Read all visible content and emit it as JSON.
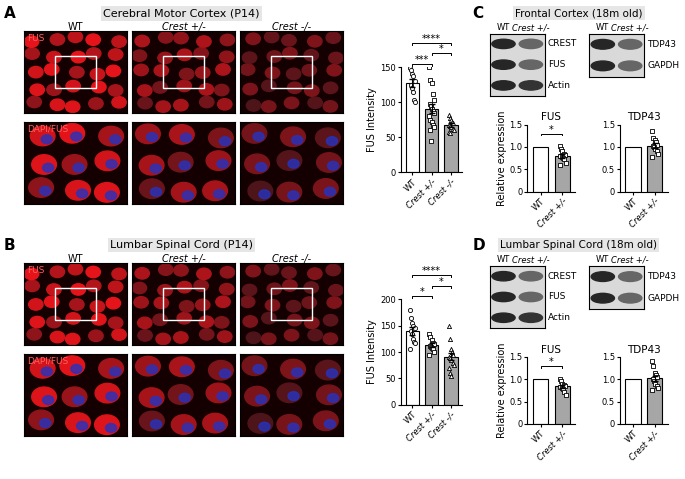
{
  "panels": [
    {
      "label": "A",
      "title": "Cerebral Motor Cortex (P14)",
      "image_columns": [
        "WT",
        "Crest +/-",
        "Crest -/-"
      ],
      "image_rows": [
        "FUS",
        "DAPI/FUS"
      ]
    },
    {
      "label": "B",
      "title": "Lumbar Spinal Cord (P14)",
      "image_columns": [
        "WT",
        "Crest +/-",
        "Crest -/-"
      ],
      "image_rows": [
        "FUS",
        "DAPI/FUS"
      ]
    },
    {
      "label": "C",
      "title": "Frontal Cortex (18m old)",
      "blot_columns": [
        "WT",
        "Crest +/-"
      ],
      "blot_left_rows": [
        "CREST",
        "FUS",
        "Actin"
      ],
      "blot_right_rows": [
        "TDP43",
        "GAPDH"
      ]
    },
    {
      "label": "D",
      "title": "Lumbar Spinal Cord (18m old)",
      "blot_columns": [
        "WT",
        "Crest +/-"
      ],
      "blot_left_rows": [
        "CREST",
        "FUS",
        "Actin"
      ],
      "blot_right_rows": [
        "TDP43",
        "GAPDH"
      ]
    }
  ],
  "chart_data": [
    {
      "type": "bar",
      "ylabel": "FUS Intensity",
      "categories": [
        "WT",
        "Crest +/-",
        "Crest -/-"
      ],
      "values": [
        127,
        91,
        68
      ],
      "errors": [
        6,
        6,
        3
      ],
      "colors": [
        "#ffffff",
        "#a6a6a6",
        "#a6a6a6"
      ],
      "points": [
        [
          148,
          146,
          140,
          137,
          130,
          125,
          120,
          115,
          103,
          100
        ],
        [
          150,
          132,
          128,
          112,
          103,
          98,
          95,
          90,
          88,
          85,
          80,
          75,
          72,
          68,
          65,
          60,
          45
        ],
        [
          82,
          78,
          75,
          72,
          70,
          68,
          66,
          64,
          62,
          60,
          58,
          56
        ]
      ],
      "ylim": [
        0,
        150
      ],
      "yticks": [
        0,
        50,
        100,
        150
      ],
      "significance": [
        {
          "pair": [
            0,
            1
          ],
          "label": "***"
        },
        {
          "pair": [
            1,
            2
          ],
          "label": "*"
        },
        {
          "pair": [
            0,
            2
          ],
          "label": "****"
        }
      ]
    },
    {
      "type": "bar",
      "ylabel": "FUS Intensity",
      "categories": [
        "WT",
        "Crest +/-",
        "Crest -/-"
      ],
      "values": [
        140,
        113,
        91
      ],
      "errors": [
        8,
        4,
        7
      ],
      "colors": [
        "#ffffff",
        "#a6a6a6",
        "#a6a6a6"
      ],
      "points": [
        [
          180,
          165,
          155,
          150,
          145,
          140,
          135,
          125,
          120,
          117,
          105
        ],
        [
          135,
          128,
          122,
          118,
          115,
          112,
          110,
          108,
          105,
          100,
          95
        ],
        [
          150,
          125,
          105,
          100,
          95,
          90,
          88,
          85,
          80,
          75,
          70,
          60,
          55
        ]
      ],
      "ylim": [
        0,
        200
      ],
      "yticks": [
        0,
        50,
        100,
        150,
        200
      ],
      "significance": [
        {
          "pair": [
            0,
            1
          ],
          "label": "*"
        },
        {
          "pair": [
            1,
            2
          ],
          "label": "*"
        },
        {
          "pair": [
            0,
            2
          ],
          "label": "****"
        }
      ]
    },
    {
      "type": "bar",
      "title": "FUS",
      "ylabel": "Relative expression",
      "categories": [
        "WT",
        "Crest +/-"
      ],
      "values": [
        1,
        0.8
      ],
      "errors": [
        null,
        0.04
      ],
      "colors": [
        "#ffffff",
        "#a6a6a6"
      ],
      "points": [
        [],
        [
          1.02,
          0.95,
          0.9,
          0.85,
          0.82,
          0.8,
          0.78,
          0.75,
          0.72,
          0.65,
          0.6
        ]
      ],
      "ylim": [
        0,
        1.5
      ],
      "yticks": [
        0,
        0.5,
        {
          "value": 1,
          "label": "1.0"
        },
        1.5
      ],
      "significance": [
        {
          "pair": [
            0,
            1
          ],
          "label": "*"
        }
      ]
    },
    {
      "type": "bar",
      "title": "TDP43",
      "categories": [
        "WT",
        "Crest +/-"
      ],
      "values": [
        1,
        1.03
      ],
      "errors": [
        null,
        0.05
      ],
      "colors": [
        "#ffffff",
        "#a6a6a6"
      ],
      "points": [
        [],
        [
          1.35,
          1.2,
          1.15,
          1.1,
          1.05,
          1.02,
          1.0,
          0.95,
          0.9,
          0.85,
          0.78
        ]
      ],
      "ylim": [
        0,
        1.5
      ],
      "yticks": [
        0,
        0.5,
        {
          "value": 1,
          "label": "1.0"
        },
        1.5
      ],
      "significance": []
    },
    {
      "type": "bar",
      "title": "FUS",
      "ylabel": "Relative expression",
      "categories": [
        "WT",
        "Crest +/-"
      ],
      "values": [
        1,
        0.84
      ],
      "errors": [
        null,
        0.04
      ],
      "colors": [
        "#ffffff",
        "#a6a6a6"
      ],
      "points": [
        [],
        [
          1.0,
          0.95,
          0.9,
          0.88,
          0.85,
          0.83,
          0.8,
          0.78,
          0.72,
          0.65
        ]
      ],
      "ylim": [
        0,
        1.5
      ],
      "yticks": [
        0,
        0.5,
        {
          "value": 1,
          "label": "1.0"
        },
        1.5
      ],
      "significance": [
        {
          "pair": [
            0,
            1
          ],
          "label": "*"
        }
      ]
    },
    {
      "type": "bar",
      "title": "TDP43",
      "categories": [
        "WT",
        "Crest +/-"
      ],
      "values": [
        1,
        1.02
      ],
      "errors": [
        null,
        0.06
      ],
      "colors": [
        "#ffffff",
        "#a6a6a6"
      ],
      "points": [
        [],
        [
          1.4,
          1.3,
          1.15,
          1.1,
          1.05,
          1.0,
          0.95,
          0.9,
          0.85,
          0.8,
          0.75
        ]
      ],
      "ylim": [
        0,
        1.5
      ],
      "yticks": [
        0,
        0.5,
        {
          "value": 1,
          "label": "1.0"
        },
        1.5
      ],
      "significance": []
    }
  ]
}
